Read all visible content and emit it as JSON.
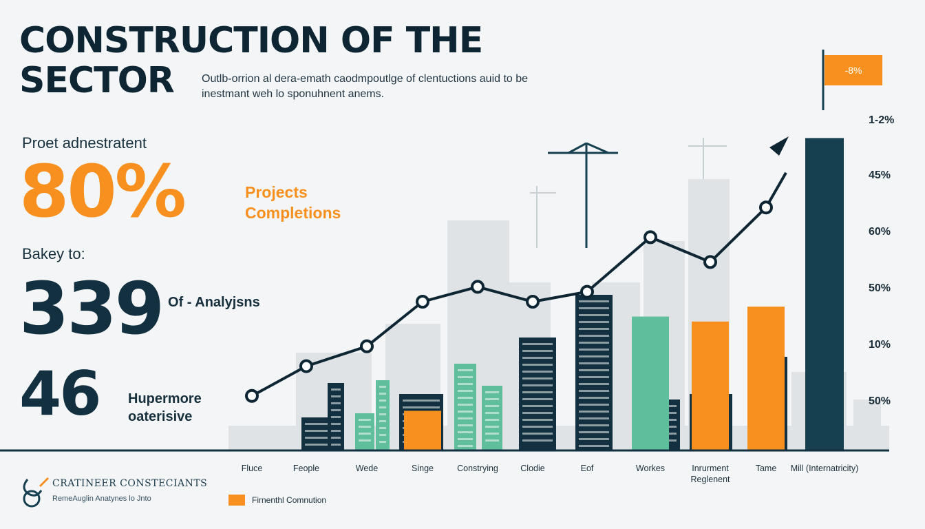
{
  "header": {
    "title_line1": "CONSTRUCTION OF THE",
    "title_line2": "SECTOR",
    "subtitle": "Outlb-orrion al dera-emath caodmpoutlge of clentuctions auid to be inestmant weh lo sponuhnent anems."
  },
  "stats": {
    "label_1": "Proet adnestratent",
    "value_1": "80%",
    "side_1": "Projects Completions",
    "label_2": "Bakey to:",
    "value_2": "339",
    "side_2": "Of - Analyjsns",
    "value_3": "46",
    "side_3": "Hupermore oaterisive"
  },
  "brand": {
    "name": "CRATINEER CONSTECIANTS",
    "tagline": "RemeAuglin Anatynes lo Jnto"
  },
  "legend": {
    "label": "Firnenthl Comnution"
  },
  "chart_data": {
    "type": "bar",
    "categories": [
      "Fluce",
      "Feople",
      "Wede",
      "Singe",
      "Constrying",
      "Clodie",
      "Eof",
      "Workes",
      "Inrurment Reglenent",
      "Tame",
      "Mill (Internatricity)"
    ],
    "y_ticks": [
      "1-2%",
      "45%",
      "60%",
      "50%",
      "10%",
      "50%"
    ],
    "flag_label": "-8%",
    "series": [
      {
        "name": "Firnenthl Comnution",
        "type": "bar",
        "values": [
          null,
          null,
          null,
          8,
          null,
          null,
          null,
          null,
          26,
          29,
          63
        ]
      },
      {
        "type": "bar",
        "values": [
          null,
          null,
          null,
          null,
          null,
          null,
          null,
          27,
          null,
          null,
          null
        ]
      },
      {
        "type": "line",
        "values": [
          11,
          17,
          21,
          30,
          33,
          30,
          32,
          43,
          38,
          49,
          null
        ]
      }
    ],
    "colors": {
      "orange": "#f7901e",
      "teal": "#5fbf9c",
      "navy": "#163f50",
      "dark": "#0e2533"
    },
    "ylim": [
      0,
      70
    ],
    "grid": true,
    "legend_position": "bottom-left"
  }
}
